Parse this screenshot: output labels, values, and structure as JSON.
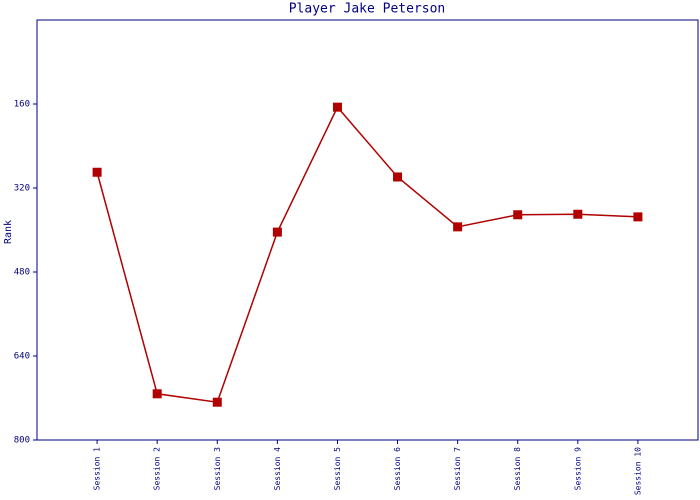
{
  "chart_data": {
    "type": "line",
    "title": "Player Jake Peterson",
    "ylabel": "Rank",
    "categories": [
      "Session 1",
      "Session 2",
      "Session 3",
      "Session 4",
      "Session 5",
      "Session 6",
      "Session 7",
      "Session 8",
      "Session 9",
      "Session 10"
    ],
    "series": [
      {
        "name": "Rank",
        "color": "#b00000",
        "values": [
          290,
          712,
          728,
          404,
          166,
          299,
          394,
          371,
          370,
          375
        ]
      }
    ],
    "ylim": [
      800,
      0
    ],
    "yticks": [
      160,
      320,
      480,
      640,
      800
    ],
    "axis_color": "#000080",
    "text_color": "#000080"
  }
}
